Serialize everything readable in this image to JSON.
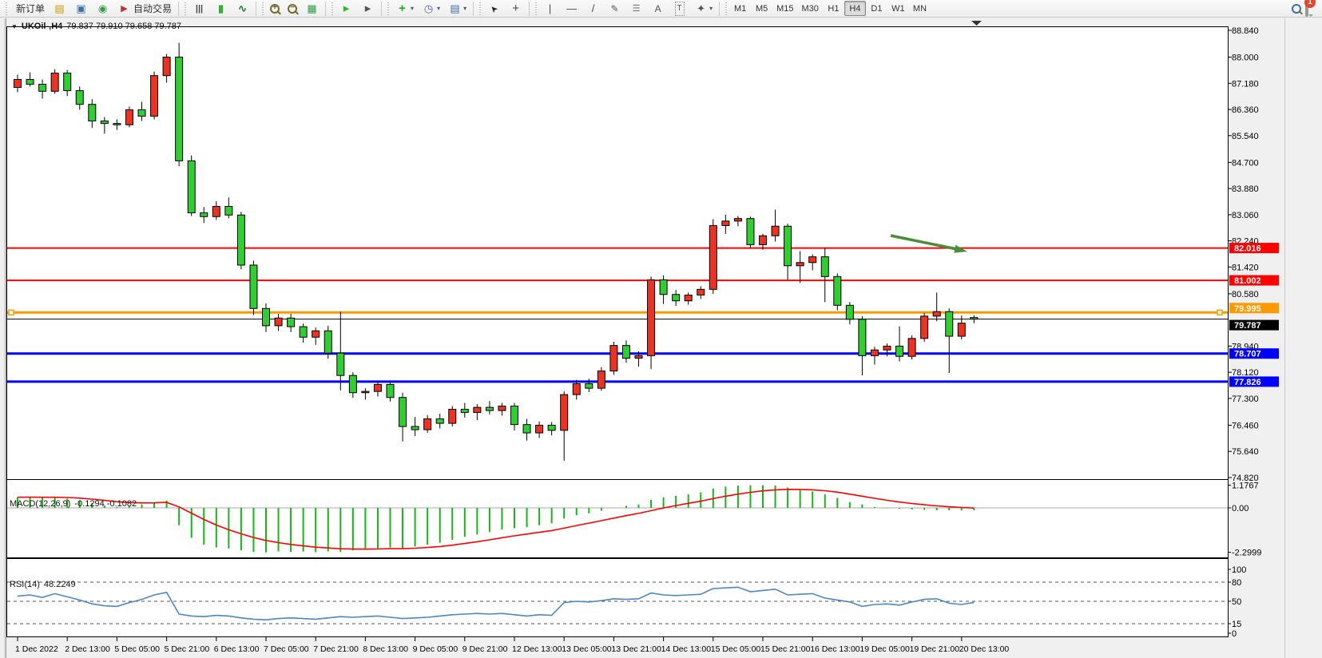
{
  "toolbar": {
    "new_order_label": "新订单",
    "autotrading_label": "自动交易",
    "groups": [
      [
        {
          "name": "new-order-button",
          "label_key": "new_order_label"
        },
        {
          "name": "chart-window-icon"
        },
        {
          "name": "terminal-icon"
        },
        {
          "name": "signals-icon"
        },
        {
          "name": "autotrading-button",
          "icon": "autotrading-icon",
          "label_key": "autotrading_label"
        }
      ],
      [
        {
          "name": "bar-chart-icon"
        },
        {
          "name": "candlestick-icon"
        },
        {
          "name": "line-chart-icon"
        }
      ],
      [
        {
          "name": "zoom-in-icon",
          "lens": "+"
        },
        {
          "name": "zoom-out-icon",
          "lens": "−"
        },
        {
          "name": "tile-windows-icon"
        }
      ],
      [
        {
          "name": "auto-scroll-icon"
        },
        {
          "name": "chart-shift-icon"
        }
      ],
      [
        {
          "name": "indicators-icon",
          "dropdown": true
        },
        {
          "name": "periods-icon",
          "dropdown": true
        },
        {
          "name": "templates-icon",
          "dropdown": true
        }
      ],
      [
        {
          "name": "cursor-icon"
        },
        {
          "name": "crosshair-icon"
        }
      ],
      [
        {
          "name": "vertical-line-icon"
        },
        {
          "name": "horizontal-line-icon"
        },
        {
          "name": "trendline-icon"
        },
        {
          "name": "equidistant-channel-icon"
        },
        {
          "name": "fibonacci-icon"
        },
        {
          "name": "text-icon"
        },
        {
          "name": "text-label-icon"
        },
        {
          "name": "arrows-icon",
          "dropdown": true
        }
      ]
    ],
    "timeframes": [
      "M1",
      "M5",
      "M15",
      "M30",
      "H1",
      "H4",
      "D1",
      "W1",
      "MN"
    ],
    "active_timeframe": "H4",
    "notification_badge": "1"
  },
  "chart": {
    "title_symbol": "UKOil-,H4",
    "title_ohlc": "79.837 79.910 79.658 79.787",
    "collapse_arrow": "▼"
  },
  "chart_data": {
    "type": "candlestick",
    "symbol": "UKOil-",
    "timeframe": "H4",
    "last_bar": {
      "open": 79.837,
      "high": 79.91,
      "low": 79.658,
      "close": 79.787
    },
    "price_axis": {
      "top_value": 88.84,
      "bottom_value": 74.82,
      "ticks": [
        "88.840",
        "88.000",
        "87.180",
        "86.360",
        "85.540",
        "84.700",
        "83.880",
        "83.060",
        "82.240",
        "81.420",
        "80.580",
        "78.940",
        "78.120",
        "77.300",
        "76.460",
        "75.640",
        "74.820"
      ]
    },
    "x_labels": [
      "1 Dec 2022",
      "2 Dec 13:00",
      "5 Dec 05:00",
      "5 Dec 21:00",
      "6 Dec 13:00",
      "7 Dec 05:00",
      "7 Dec 21:00",
      "8 Dec 13:00",
      "9 Dec 05:00",
      "9 Dec 21:00",
      "12 Dec 13:00",
      "13 Dec 05:00",
      "13 Dec 21:00",
      "14 Dec 13:00",
      "15 Dec 05:00",
      "15 Dec 21:00",
      "16 Dec 13:00",
      "19 Dec 05:00",
      "19 Dec 21:00",
      "20 Dec 13:00"
    ],
    "label_every_n_bars": 4,
    "colors": {
      "up": "#ea3323",
      "down": "#33cc33",
      "wick": "#000000",
      "outline": "#000000"
    },
    "hlines": [
      {
        "price": 82.016,
        "label": "82.016",
        "color": "#ff0000",
        "width": 2
      },
      {
        "price": 81.002,
        "label": "81.002",
        "color": "#ff0000",
        "width": 2
      },
      {
        "price": 79.995,
        "label": "79.995",
        "color": "#ff9900",
        "width": 3,
        "handles": true,
        "tag_shift": -12
      },
      {
        "price": 79.787,
        "label": "79.787",
        "color": "#000000",
        "width": 1,
        "current": true,
        "tag_shift": 1
      },
      {
        "price": 78.707,
        "label": "78.707",
        "color": "#0000ff",
        "width": 3
      },
      {
        "price": 77.826,
        "label": "77.826",
        "color": "#0000ff",
        "width": 3
      }
    ],
    "candles": [
      [
        87.05,
        87.45,
        86.9,
        87.3
      ],
      [
        87.3,
        87.52,
        87.08,
        87.15
      ],
      [
        87.15,
        87.3,
        86.7,
        86.93
      ],
      [
        86.93,
        87.62,
        86.85,
        87.5
      ],
      [
        87.5,
        87.6,
        86.78,
        86.95
      ],
      [
        86.95,
        87.08,
        86.35,
        86.52
      ],
      [
        86.52,
        86.68,
        85.78,
        86.0
      ],
      [
        86.0,
        86.12,
        85.6,
        85.92
      ],
      [
        85.92,
        86.05,
        85.72,
        85.88
      ],
      [
        85.88,
        86.45,
        85.8,
        86.35
      ],
      [
        86.35,
        86.6,
        86.0,
        86.15
      ],
      [
        86.15,
        87.55,
        86.05,
        87.42
      ],
      [
        87.42,
        88.1,
        87.2,
        88.0
      ],
      [
        88.0,
        88.45,
        84.58,
        84.75
      ],
      [
        84.75,
        84.92,
        83.02,
        83.12
      ],
      [
        83.12,
        83.3,
        82.8,
        83.0
      ],
      [
        83.0,
        83.48,
        82.9,
        83.32
      ],
      [
        83.32,
        83.6,
        82.95,
        83.05
      ],
      [
        83.05,
        83.15,
        81.35,
        81.48
      ],
      [
        81.48,
        81.62,
        79.92,
        80.12
      ],
      [
        80.12,
        80.28,
        79.38,
        79.58
      ],
      [
        79.58,
        79.95,
        79.42,
        79.82
      ],
      [
        79.82,
        79.95,
        79.38,
        79.55
      ],
      [
        79.55,
        79.65,
        79.05,
        79.22
      ],
      [
        79.22,
        79.52,
        78.98,
        79.42
      ],
      [
        79.42,
        79.58,
        78.55,
        78.72
      ],
      [
        78.72,
        80.02,
        77.55,
        78.02
      ],
      [
        78.02,
        78.12,
        77.32,
        77.48
      ],
      [
        77.48,
        77.62,
        77.26,
        77.52
      ],
      [
        77.52,
        77.82,
        77.36,
        77.74
      ],
      [
        77.74,
        77.82,
        77.2,
        77.33
      ],
      [
        77.33,
        77.48,
        75.95,
        76.42
      ],
      [
        76.42,
        76.72,
        76.12,
        76.32
      ],
      [
        76.32,
        76.78,
        76.22,
        76.66
      ],
      [
        76.66,
        76.82,
        76.36,
        76.52
      ],
      [
        76.52,
        77.06,
        76.42,
        76.96
      ],
      [
        76.96,
        77.16,
        76.7,
        76.86
      ],
      [
        76.86,
        77.12,
        76.62,
        77.02
      ],
      [
        77.02,
        77.22,
        76.8,
        76.92
      ],
      [
        76.92,
        77.16,
        76.76,
        77.06
      ],
      [
        77.06,
        77.16,
        76.3,
        76.48
      ],
      [
        76.48,
        76.66,
        75.98,
        76.22
      ],
      [
        76.22,
        76.58,
        76.06,
        76.46
      ],
      [
        76.46,
        76.56,
        76.14,
        76.3
      ],
      [
        76.3,
        77.52,
        75.35,
        77.42
      ],
      [
        77.42,
        77.88,
        77.26,
        77.76
      ],
      [
        77.76,
        77.92,
        77.5,
        77.62
      ],
      [
        77.62,
        78.28,
        77.54,
        78.16
      ],
      [
        78.16,
        79.08,
        78.04,
        78.96
      ],
      [
        78.96,
        79.12,
        78.42,
        78.56
      ],
      [
        78.56,
        78.78,
        78.3,
        78.64
      ],
      [
        78.64,
        81.12,
        78.22,
        81.02
      ],
      [
        81.02,
        81.16,
        80.26,
        80.56
      ],
      [
        80.56,
        80.7,
        80.2,
        80.36
      ],
      [
        80.36,
        80.62,
        80.24,
        80.54
      ],
      [
        80.54,
        80.82,
        80.42,
        80.72
      ],
      [
        80.72,
        82.92,
        80.58,
        82.72
      ],
      [
        82.72,
        83.06,
        82.46,
        82.86
      ],
      [
        82.86,
        83.02,
        82.7,
        82.94
      ],
      [
        82.94,
        83.0,
        82.0,
        82.12
      ],
      [
        82.12,
        82.46,
        81.96,
        82.4
      ],
      [
        82.4,
        83.22,
        82.22,
        82.7
      ],
      [
        82.7,
        82.78,
        81.02,
        81.46
      ],
      [
        81.46,
        81.92,
        80.92,
        81.56
      ],
      [
        81.56,
        81.82,
        81.32,
        81.74
      ],
      [
        81.74,
        82.02,
        80.32,
        81.12
      ],
      [
        81.12,
        81.22,
        80.06,
        80.22
      ],
      [
        80.22,
        80.32,
        79.62,
        79.78
      ],
      [
        79.78,
        79.88,
        78.02,
        78.64
      ],
      [
        78.64,
        78.92,
        78.36,
        78.82
      ],
      [
        78.82,
        79.02,
        78.62,
        78.94
      ],
      [
        78.94,
        79.56,
        78.46,
        78.62
      ],
      [
        78.62,
        79.28,
        78.52,
        79.18
      ],
      [
        79.18,
        79.98,
        79.08,
        79.88
      ],
      [
        79.88,
        80.62,
        79.72,
        80.02
      ],
      [
        80.02,
        80.12,
        78.1,
        79.25
      ],
      [
        79.25,
        79.9,
        79.15,
        79.66
      ],
      [
        79.837,
        79.91,
        79.658,
        79.787
      ]
    ],
    "indicators": {
      "macd": {
        "label": "MACD(12,26,9)",
        "values_label": "-0.1294 -0.1082",
        "axis_ticks": [
          "1.1767",
          "0.00",
          "-2.2999"
        ],
        "max": 1.1767,
        "min": -2.2999,
        "histogram_color": "#16b616",
        "signal_color": "#ff0000",
        "histogram": [
          0.55,
          0.58,
          0.52,
          0.55,
          0.48,
          0.38,
          0.25,
          0.12,
          0.05,
          0.1,
          0.18,
          0.28,
          0.38,
          -0.9,
          -1.55,
          -1.9,
          -2.05,
          -2.1,
          -2.2,
          -2.28,
          -2.2999,
          -2.25,
          -2.28,
          -2.26,
          -2.29,
          -2.25,
          -2.28,
          -2.2,
          -2.15,
          -2.1,
          -2.05,
          -2.1,
          -2.0,
          -1.9,
          -1.8,
          -1.65,
          -1.5,
          -1.38,
          -1.25,
          -1.12,
          -1.05,
          -1.0,
          -0.9,
          -0.8,
          -0.55,
          -0.38,
          -0.28,
          -0.15,
          0.0,
          0.1,
          0.18,
          0.42,
          0.55,
          0.62,
          0.7,
          0.8,
          1.0,
          1.1,
          1.15,
          1.17,
          1.1767,
          1.16,
          1.05,
          0.95,
          0.85,
          0.7,
          0.52,
          0.3,
          0.18,
          0.05,
          -0.02,
          -0.05,
          -0.08,
          -0.1,
          -0.12,
          -0.13,
          -0.13,
          -0.1294
        ]
      },
      "rsi": {
        "label": "RSI(14)",
        "value_label": "48.2249",
        "axis_ticks": [
          "100",
          "80",
          "50",
          "15",
          "0"
        ],
        "levels": [
          80,
          50,
          15
        ],
        "line_color": "#4a86c8",
        "values": [
          58,
          60,
          56,
          62,
          57,
          52,
          46,
          43,
          42,
          48,
          53,
          60,
          64,
          30,
          27,
          26,
          28,
          27,
          24,
          22,
          21,
          23,
          24,
          23,
          22,
          24,
          26,
          25,
          26,
          27,
          25,
          23,
          24,
          25,
          27,
          29,
          30,
          31,
          30,
          31,
          29,
          27,
          29,
          28,
          48,
          50,
          49,
          51,
          54,
          53,
          54,
          63,
          60,
          59,
          60,
          61,
          70,
          71,
          72,
          65,
          67,
          69,
          60,
          61,
          62,
          55,
          52,
          49,
          42,
          45,
          46,
          44,
          49,
          53,
          54,
          47,
          45,
          48.2249
        ]
      }
    },
    "objects": {
      "trend_arrow_color": "#4a8c3a"
    }
  }
}
